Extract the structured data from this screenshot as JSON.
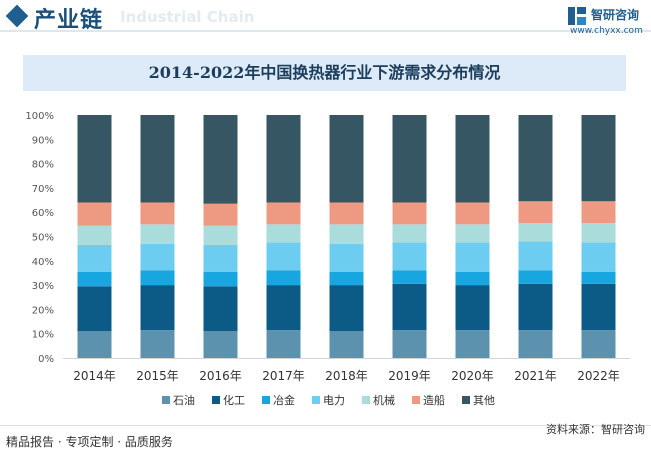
{
  "header": {
    "title": "产业链",
    "watermark": "Industrial Chain"
  },
  "brand": {
    "name": "智研咨询",
    "url": "www.chyxx.com"
  },
  "footer": {
    "left": "精品报告 · 专项定制 · 品质服务",
    "right": "资料来源：智研咨询"
  },
  "colors": {
    "石油": "#5d92ae",
    "化工": "#0b5b86",
    "冶金": "#17a6df",
    "电力": "#6dcdf1",
    "机械": "#a9dcdb",
    "造船": "#ee9a82",
    "其他": "#365663"
  },
  "chart_data": {
    "type": "bar",
    "stacked": true,
    "title": "2014-2022年中国换热器行业下游需求分布情况",
    "categories": [
      "2014年",
      "2015年",
      "2016年",
      "2017年",
      "2018年",
      "2019年",
      "2020年",
      "2021年",
      "2022年"
    ],
    "ylim": [
      0,
      100
    ],
    "yticks": [
      "0%",
      "10%",
      "20%",
      "30%",
      "40%",
      "50%",
      "60%",
      "70%",
      "80%",
      "90%",
      "100%"
    ],
    "legend_position": "bottom",
    "grid": false,
    "series": [
      {
        "name": "石油",
        "values": [
          11,
          11.5,
          11,
          11.5,
          11,
          11.5,
          11.5,
          11.5,
          11.5
        ]
      },
      {
        "name": "化工",
        "values": [
          18.5,
          18.5,
          18.5,
          18.5,
          19,
          19,
          18.5,
          19,
          19
        ]
      },
      {
        "name": "冶金",
        "values": [
          6,
          6,
          6,
          6,
          5.5,
          5.5,
          5.5,
          5.5,
          5
        ]
      },
      {
        "name": "电力",
        "values": [
          11,
          11,
          11,
          11.5,
          11.5,
          11.5,
          12,
          12,
          12
        ]
      },
      {
        "name": "机械",
        "values": [
          8,
          8,
          8,
          7.5,
          8,
          7.5,
          7.5,
          7.5,
          8
        ]
      },
      {
        "name": "造船",
        "values": [
          9.5,
          9,
          9,
          9,
          9,
          9,
          9,
          9,
          9
        ]
      },
      {
        "name": "其他",
        "values": [
          36,
          36,
          36.5,
          36,
          36,
          36,
          36,
          35.5,
          35.5
        ]
      }
    ]
  }
}
